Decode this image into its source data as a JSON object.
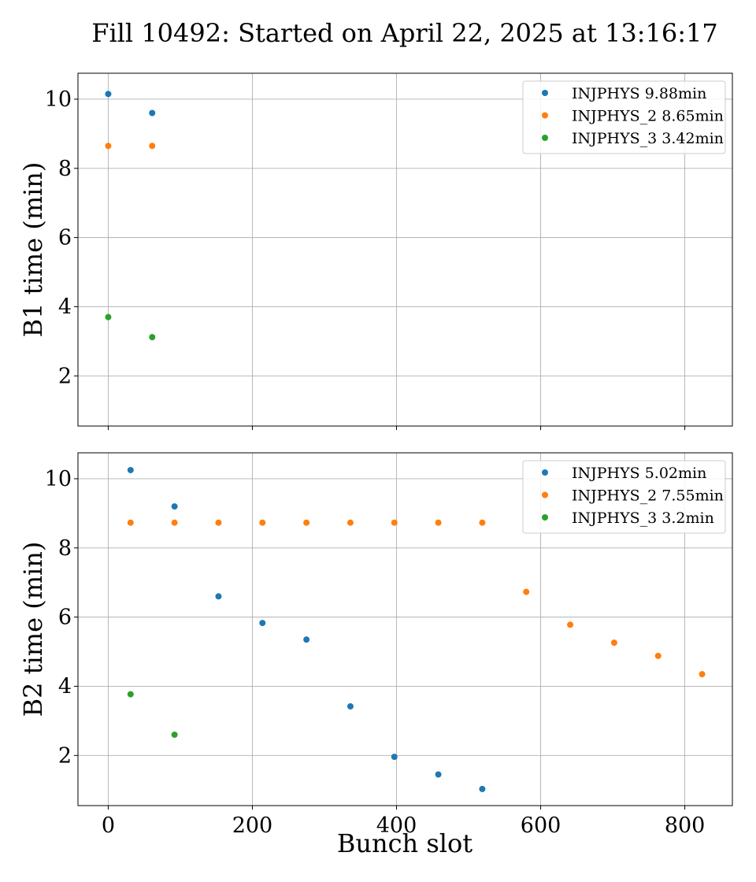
{
  "figure": {
    "title": "Fill 10492: Started on April 22, 2025 at 13:16:17",
    "xlabel": "Bunch slot"
  },
  "colors": {
    "INJPHYS": "#1f77b4",
    "INJPHYS_2": "#ff7f0e",
    "INJPHYS_3": "#2ca02c",
    "grid": "#b0b0b0"
  },
  "chart_data": [
    {
      "type": "scatter",
      "ylabel": "B1 time (min)",
      "xlim": [
        -42,
        866
      ],
      "ylim": [
        0.55,
        10.75
      ],
      "xticks": [
        0,
        200,
        400,
        600,
        800
      ],
      "yticks": [
        2,
        4,
        6,
        8,
        10
      ],
      "grid": true,
      "show_xtick_labels": false,
      "legend_position": "top-right",
      "series": [
        {
          "name": "INJPHYS",
          "legend": "INJPHYS 9.88min",
          "color_key": "INJPHYS",
          "x": [
            0,
            61
          ],
          "y": [
            10.15,
            9.6
          ]
        },
        {
          "name": "INJPHYS_2",
          "legend": "INJPHYS_2 8.65min",
          "color_key": "INJPHYS_2",
          "x": [
            0,
            61
          ],
          "y": [
            8.65,
            8.65
          ]
        },
        {
          "name": "INJPHYS_3",
          "legend": "INJPHYS_3 3.42min",
          "color_key": "INJPHYS_3",
          "x": [
            0,
            61
          ],
          "y": [
            3.7,
            3.12
          ]
        }
      ]
    },
    {
      "type": "scatter",
      "ylabel": "B2 time (min)",
      "xlim": [
        -42,
        866
      ],
      "ylim": [
        0.55,
        10.75
      ],
      "xticks": [
        0,
        200,
        400,
        600,
        800
      ],
      "yticks": [
        2,
        4,
        6,
        8,
        10
      ],
      "grid": true,
      "show_xtick_labels": true,
      "legend_position": "top-right",
      "series": [
        {
          "name": "INJPHYS",
          "legend": "INJPHYS 5.02min",
          "color_key": "INJPHYS",
          "x": [
            31,
            92,
            153,
            214,
            275,
            336,
            397,
            458,
            519
          ],
          "y": [
            10.25,
            9.2,
            6.6,
            5.83,
            5.35,
            3.42,
            1.96,
            1.45,
            1.03
          ]
        },
        {
          "name": "INJPHYS_2",
          "legend": "INJPHYS_2 7.55min",
          "color_key": "INJPHYS_2",
          "x": [
            31,
            92,
            153,
            214,
            275,
            336,
            397,
            458,
            519,
            580,
            641,
            702,
            763,
            824
          ],
          "y": [
            8.73,
            8.73,
            8.73,
            8.73,
            8.73,
            8.73,
            8.73,
            8.73,
            8.73,
            6.73,
            5.78,
            5.26,
            4.88,
            4.35
          ]
        },
        {
          "name": "INJPHYS_3",
          "legend": "INJPHYS_3 3.2min",
          "color_key": "INJPHYS_3",
          "x": [
            31,
            92
          ],
          "y": [
            3.77,
            2.6
          ]
        }
      ]
    }
  ]
}
